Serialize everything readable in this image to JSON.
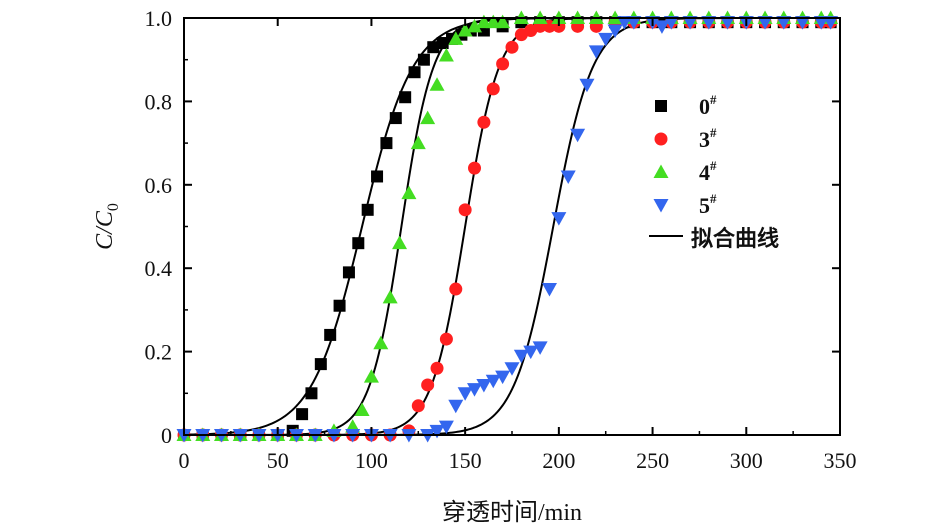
{
  "chart_data": {
    "type": "scatter",
    "title": "",
    "xlabel": "穿透时间/min",
    "ylabel": {
      "main": "C/C",
      "sub": "0"
    },
    "xlim": [
      0,
      350
    ],
    "ylim": [
      0,
      1.0
    ],
    "xticks": [
      "0",
      "50",
      "100",
      "150",
      "200",
      "250",
      "300",
      "350"
    ],
    "yticks": [
      "0",
      "0.2",
      "0.4",
      "0.6",
      "0.8",
      "1.0"
    ],
    "grid": false,
    "legend_position": "right",
    "series": [
      {
        "name": "0",
        "sup": "#",
        "marker": "square",
        "color": "#000000",
        "points": [
          [
            0,
            0
          ],
          [
            10,
            0
          ],
          [
            20,
            0
          ],
          [
            30,
            0
          ],
          [
            40,
            0
          ],
          [
            50,
            0
          ],
          [
            58,
            0.01
          ],
          [
            63,
            0.05
          ],
          [
            68,
            0.1
          ],
          [
            73,
            0.17
          ],
          [
            78,
            0.24
          ],
          [
            83,
            0.31
          ],
          [
            88,
            0.39
          ],
          [
            93,
            0.46
          ],
          [
            98,
            0.54
          ],
          [
            103,
            0.62
          ],
          [
            108,
            0.7
          ],
          [
            113,
            0.76
          ],
          [
            118,
            0.81
          ],
          [
            123,
            0.87
          ],
          [
            128,
            0.9
          ],
          [
            133,
            0.93
          ],
          [
            138,
            0.94
          ],
          [
            143,
            0.95
          ],
          [
            148,
            0.96
          ],
          [
            153,
            0.97
          ],
          [
            160,
            0.97
          ],
          [
            170,
            0.98
          ],
          [
            180,
            0.99
          ],
          [
            190,
            0.99
          ],
          [
            200,
            0.99
          ],
          [
            210,
            0.99
          ],
          [
            220,
            0.99
          ],
          [
            230,
            0.99
          ],
          [
            240,
            0.99
          ],
          [
            250,
            0.99
          ],
          [
            260,
            0.99
          ],
          [
            270,
            0.99
          ],
          [
            280,
            0.99
          ],
          [
            290,
            0.99
          ],
          [
            300,
            0.99
          ],
          [
            310,
            0.99
          ],
          [
            320,
            0.99
          ],
          [
            330,
            0.99
          ],
          [
            340,
            0.99
          ],
          [
            345,
            0.99
          ]
        ]
      },
      {
        "name": "3",
        "sup": "#",
        "marker": "circle",
        "color": "#ff2020",
        "points": [
          [
            0,
            0
          ],
          [
            10,
            0
          ],
          [
            20,
            0
          ],
          [
            30,
            0
          ],
          [
            40,
            0
          ],
          [
            50,
            0
          ],
          [
            60,
            0
          ],
          [
            70,
            0
          ],
          [
            80,
            0
          ],
          [
            90,
            0
          ],
          [
            100,
            0
          ],
          [
            110,
            0
          ],
          [
            120,
            0.01
          ],
          [
            125,
            0.07
          ],
          [
            130,
            0.12
          ],
          [
            135,
            0.16
          ],
          [
            140,
            0.23
          ],
          [
            145,
            0.35
          ],
          [
            150,
            0.54
          ],
          [
            155,
            0.64
          ],
          [
            160,
            0.75
          ],
          [
            165,
            0.83
          ],
          [
            170,
            0.89
          ],
          [
            175,
            0.93
          ],
          [
            180,
            0.96
          ],
          [
            185,
            0.97
          ],
          [
            190,
            0.98
          ],
          [
            195,
            0.98
          ],
          [
            200,
            0.98
          ],
          [
            210,
            0.98
          ],
          [
            220,
            0.98
          ],
          [
            230,
            0.99
          ],
          [
            240,
            0.99
          ],
          [
            250,
            0.99
          ],
          [
            260,
            0.99
          ],
          [
            270,
            0.99
          ],
          [
            280,
            0.99
          ],
          [
            290,
            0.99
          ],
          [
            300,
            0.99
          ],
          [
            310,
            0.99
          ],
          [
            320,
            0.99
          ],
          [
            330,
            0.99
          ],
          [
            340,
            0.99
          ],
          [
            345,
            0.99
          ]
        ]
      },
      {
        "name": "4",
        "sup": "#",
        "marker": "triangle-up",
        "color": "#44dd22",
        "points": [
          [
            0,
            0
          ],
          [
            10,
            0
          ],
          [
            20,
            0
          ],
          [
            30,
            0
          ],
          [
            40,
            0
          ],
          [
            50,
            0
          ],
          [
            60,
            0
          ],
          [
            70,
            0
          ],
          [
            80,
            0.01
          ],
          [
            90,
            0.02
          ],
          [
            95,
            0.06
          ],
          [
            100,
            0.14
          ],
          [
            105,
            0.22
          ],
          [
            110,
            0.33
          ],
          [
            115,
            0.46
          ],
          [
            120,
            0.58
          ],
          [
            125,
            0.7
          ],
          [
            130,
            0.76
          ],
          [
            135,
            0.84
          ],
          [
            140,
            0.91
          ],
          [
            145,
            0.95
          ],
          [
            150,
            0.97
          ],
          [
            155,
            0.98
          ],
          [
            160,
            0.99
          ],
          [
            165,
            0.99
          ],
          [
            170,
            0.99
          ],
          [
            180,
            1.0
          ],
          [
            190,
            1.0
          ],
          [
            200,
            1.0
          ],
          [
            210,
            1.0
          ],
          [
            220,
            1.0
          ],
          [
            230,
            1.0
          ],
          [
            240,
            1.0
          ],
          [
            250,
            1.0
          ],
          [
            260,
            1.0
          ],
          [
            270,
            1.0
          ],
          [
            280,
            1.0
          ],
          [
            290,
            1.0
          ],
          [
            300,
            1.0
          ],
          [
            310,
            1.0
          ],
          [
            320,
            1.0
          ],
          [
            330,
            1.0
          ],
          [
            340,
            1.0
          ],
          [
            345,
            1.0
          ]
        ]
      },
      {
        "name": "5",
        "sup": "#",
        "marker": "triangle-down",
        "color": "#3366ee",
        "points": [
          [
            0,
            0
          ],
          [
            10,
            0
          ],
          [
            20,
            0
          ],
          [
            30,
            0
          ],
          [
            40,
            0
          ],
          [
            50,
            0
          ],
          [
            60,
            0
          ],
          [
            70,
            0
          ],
          [
            80,
            0
          ],
          [
            90,
            0
          ],
          [
            100,
            0
          ],
          [
            110,
            0
          ],
          [
            120,
            0
          ],
          [
            130,
            0
          ],
          [
            135,
            0.01
          ],
          [
            140,
            0.02
          ],
          [
            145,
            0.07
          ],
          [
            150,
            0.1
          ],
          [
            155,
            0.11
          ],
          [
            160,
            0.12
          ],
          [
            165,
            0.13
          ],
          [
            170,
            0.14
          ],
          [
            175,
            0.16
          ],
          [
            180,
            0.19
          ],
          [
            185,
            0.2
          ],
          [
            190,
            0.21
          ],
          [
            195,
            0.35
          ],
          [
            200,
            0.52
          ],
          [
            205,
            0.62
          ],
          [
            210,
            0.72
          ],
          [
            215,
            0.84
          ],
          [
            220,
            0.92
          ],
          [
            225,
            0.95
          ],
          [
            230,
            0.97
          ],
          [
            235,
            0.99
          ],
          [
            240,
            0.99
          ],
          [
            250,
            0.99
          ],
          [
            255,
            0.98
          ],
          [
            260,
            0.99
          ],
          [
            270,
            0.99
          ],
          [
            280,
            0.99
          ],
          [
            290,
            0.99
          ],
          [
            300,
            0.99
          ],
          [
            310,
            0.99
          ],
          [
            320,
            0.99
          ],
          [
            330,
            0.99
          ],
          [
            340,
            0.99
          ],
          [
            345,
            0.99
          ]
        ]
      }
    ],
    "fit_curves": {
      "name": "拟合曲线",
      "color": "#000000",
      "curves": [
        {
          "midpoint": 95,
          "scale": 13.5
        },
        {
          "midpoint": 116,
          "scale": 8.5
        },
        {
          "midpoint": 150,
          "scale": 9
        },
        {
          "midpoint": 197,
          "scale": 10.5
        }
      ]
    }
  }
}
